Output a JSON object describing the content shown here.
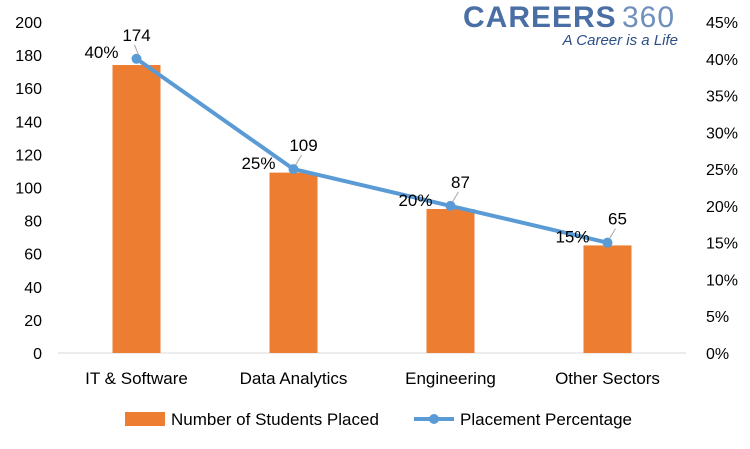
{
  "logo": {
    "brand": "CAREERS",
    "number": "360",
    "tagline": "A Career is a Life"
  },
  "colors": {
    "bar": "#ED7D31",
    "line": "#5B9BD5"
  },
  "chart_data": {
    "type": "bar",
    "categories": [
      "IT & Software",
      "Data Analytics",
      "Engineering",
      "Other Sectors"
    ],
    "series": [
      {
        "name": "Number of Students Placed",
        "type": "bar",
        "axis": "left",
        "values": [
          174,
          109,
          87,
          65
        ],
        "labels": [
          "174",
          "109",
          "87",
          "65"
        ]
      },
      {
        "name": "Placement Percentage",
        "type": "line",
        "axis": "right",
        "values": [
          40,
          25,
          20,
          15
        ],
        "labels": [
          "40%",
          "25%",
          "20%",
          "15%"
        ]
      }
    ],
    "y_left": {
      "min": 0,
      "max": 200,
      "step": 20,
      "tick_labels": [
        "0",
        "20",
        "40",
        "60",
        "80",
        "100",
        "120",
        "140",
        "160",
        "180",
        "200"
      ]
    },
    "y_right": {
      "min": 0,
      "max": 45,
      "step": 5,
      "tick_labels": [
        "0%",
        "5%",
        "10%",
        "15%",
        "20%",
        "25%",
        "30%",
        "35%",
        "40%",
        "45%"
      ]
    },
    "grid": false,
    "legend_position": "bottom"
  }
}
